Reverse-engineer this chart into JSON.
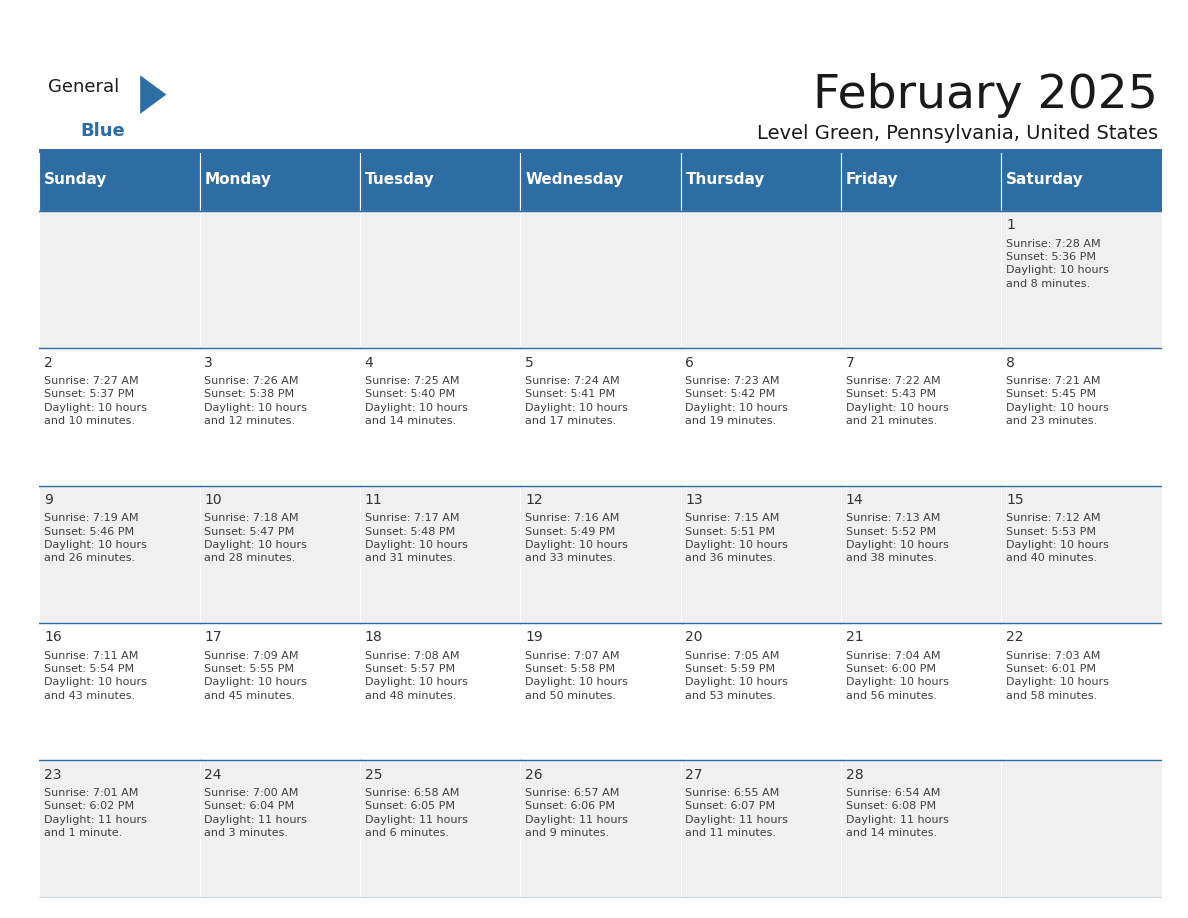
{
  "title": "February 2025",
  "subtitle": "Level Green, Pennsylvania, United States",
  "header_bg": "#2E6DA4",
  "header_text_color": "#FFFFFF",
  "cell_bg_light": "#F0F0F0",
  "cell_bg_white": "#FFFFFF",
  "day_number_color": "#333333",
  "text_color": "#404040",
  "line_color": "#2E6DA4",
  "days_of_week": [
    "Sunday",
    "Monday",
    "Tuesday",
    "Wednesday",
    "Thursday",
    "Friday",
    "Saturday"
  ],
  "calendar": [
    [
      null,
      null,
      null,
      null,
      null,
      null,
      1
    ],
    [
      2,
      3,
      4,
      5,
      6,
      7,
      8
    ],
    [
      9,
      10,
      11,
      12,
      13,
      14,
      15
    ],
    [
      16,
      17,
      18,
      19,
      20,
      21,
      22
    ],
    [
      23,
      24,
      25,
      26,
      27,
      28,
      null
    ]
  ],
  "sunrise": {
    "1": "7:28 AM",
    "2": "7:27 AM",
    "3": "7:26 AM",
    "4": "7:25 AM",
    "5": "7:24 AM",
    "6": "7:23 AM",
    "7": "7:22 AM",
    "8": "7:21 AM",
    "9": "7:19 AM",
    "10": "7:18 AM",
    "11": "7:17 AM",
    "12": "7:16 AM",
    "13": "7:15 AM",
    "14": "7:13 AM",
    "15": "7:12 AM",
    "16": "7:11 AM",
    "17": "7:09 AM",
    "18": "7:08 AM",
    "19": "7:07 AM",
    "20": "7:05 AM",
    "21": "7:04 AM",
    "22": "7:03 AM",
    "23": "7:01 AM",
    "24": "7:00 AM",
    "25": "6:58 AM",
    "26": "6:57 AM",
    "27": "6:55 AM",
    "28": "6:54 AM"
  },
  "sunset": {
    "1": "5:36 PM",
    "2": "5:37 PM",
    "3": "5:38 PM",
    "4": "5:40 PM",
    "5": "5:41 PM",
    "6": "5:42 PM",
    "7": "5:43 PM",
    "8": "5:45 PM",
    "9": "5:46 PM",
    "10": "5:47 PM",
    "11": "5:48 PM",
    "12": "5:49 PM",
    "13": "5:51 PM",
    "14": "5:52 PM",
    "15": "5:53 PM",
    "16": "5:54 PM",
    "17": "5:55 PM",
    "18": "5:57 PM",
    "19": "5:58 PM",
    "20": "5:59 PM",
    "21": "6:00 PM",
    "22": "6:01 PM",
    "23": "6:02 PM",
    "24": "6:04 PM",
    "25": "6:05 PM",
    "26": "6:06 PM",
    "27": "6:07 PM",
    "28": "6:08 PM"
  },
  "daylight": {
    "1": "10 hours and 8 minutes.",
    "2": "10 hours and 10 minutes.",
    "3": "10 hours and 12 minutes.",
    "4": "10 hours and 14 minutes.",
    "5": "10 hours and 17 minutes.",
    "6": "10 hours and 19 minutes.",
    "7": "10 hours and 21 minutes.",
    "8": "10 hours and 23 minutes.",
    "9": "10 hours and 26 minutes.",
    "10": "10 hours and 28 minutes.",
    "11": "10 hours and 31 minutes.",
    "12": "10 hours and 33 minutes.",
    "13": "10 hours and 36 minutes.",
    "14": "10 hours and 38 minutes.",
    "15": "10 hours and 40 minutes.",
    "16": "10 hours and 43 minutes.",
    "17": "10 hours and 45 minutes.",
    "18": "10 hours and 48 minutes.",
    "19": "10 hours and 50 minutes.",
    "20": "10 hours and 53 minutes.",
    "21": "10 hours and 56 minutes.",
    "22": "10 hours and 58 minutes.",
    "23": "11 hours and 1 minute.",
    "24": "11 hours and 3 minutes.",
    "25": "11 hours and 6 minutes.",
    "26": "11 hours and 9 minutes.",
    "27": "11 hours and 11 minutes.",
    "28": "11 hours and 14 minutes."
  },
  "logo_general_color": "#1a1a1a",
  "logo_blue_color": "#2E6DA4",
  "logo_triangle_color": "#2E6DA4",
  "title_color": "#1a1a1a",
  "subtitle_color": "#1a1a1a",
  "title_fontsize": 34,
  "subtitle_fontsize": 14,
  "header_fontsize": 11,
  "day_num_fontsize": 10,
  "cell_text_fontsize": 8
}
